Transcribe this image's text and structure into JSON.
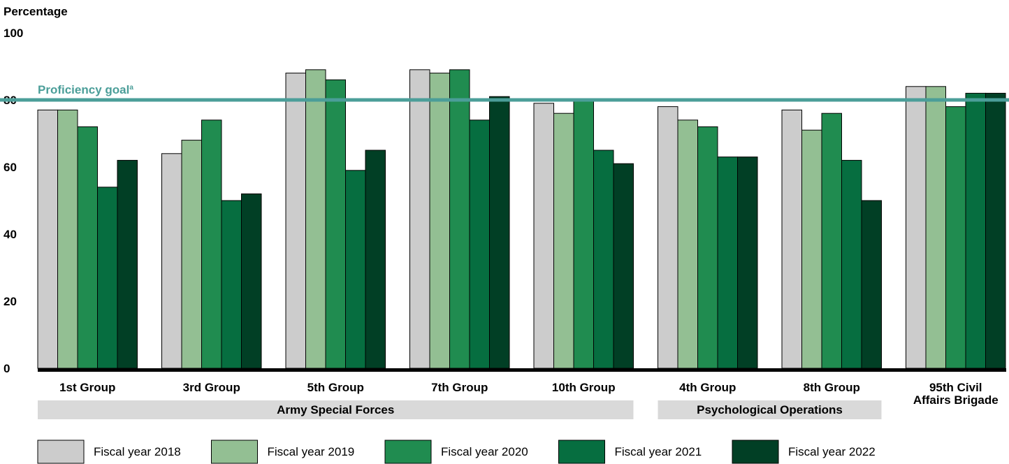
{
  "chart_data": {
    "type": "bar",
    "ylabel": "Percentage",
    "ylim": [
      0,
      100
    ],
    "yticks": [
      0,
      20,
      40,
      60,
      80,
      100
    ],
    "categories": [
      "1st Group",
      "3rd Group",
      "5th Group",
      "7th Group",
      "10th Group",
      "4th Group",
      "8th Group",
      "95th Civil Affairs Brigade"
    ],
    "category_display": [
      [
        "1st Group"
      ],
      [
        "3rd Group"
      ],
      [
        "5th Group"
      ],
      [
        "7th Group"
      ],
      [
        "10th Group"
      ],
      [
        "4th Group"
      ],
      [
        "8th Group"
      ],
      [
        "95th Civil",
        "Affairs Brigade"
      ]
    ],
    "category_groups": [
      {
        "label": "Army Special Forces",
        "members": [
          "1st Group",
          "3rd Group",
          "5th Group",
          "7th Group",
          "10th Group"
        ]
      },
      {
        "label": "Psychological Operations",
        "members": [
          "4th Group",
          "8th Group"
        ]
      }
    ],
    "series": [
      {
        "name": "Fiscal year 2018",
        "color": "#cccccc",
        "values": [
          77,
          64,
          88,
          89,
          79,
          78,
          77,
          84
        ]
      },
      {
        "name": "Fiscal year 2019",
        "color": "#93bf93",
        "values": [
          77,
          68,
          89,
          88,
          76,
          74,
          71,
          84
        ]
      },
      {
        "name": "Fiscal year 2020",
        "color": "#208c50",
        "values": [
          72,
          74,
          86,
          89,
          80,
          72,
          76,
          78
        ]
      },
      {
        "name": "Fiscal year 2021",
        "color": "#066e40",
        "values": [
          54,
          50,
          59,
          74,
          65,
          63,
          62,
          82
        ]
      },
      {
        "name": "Fiscal year 2022",
        "color": "#013f25",
        "values": [
          62,
          52,
          65,
          81,
          61,
          63,
          50,
          82
        ]
      }
    ],
    "reference_line": {
      "label": "Proficiency goal",
      "footnote": "a",
      "value": 80,
      "color": "#4b9e99"
    },
    "legend_position": "bottom",
    "grid": false
  }
}
